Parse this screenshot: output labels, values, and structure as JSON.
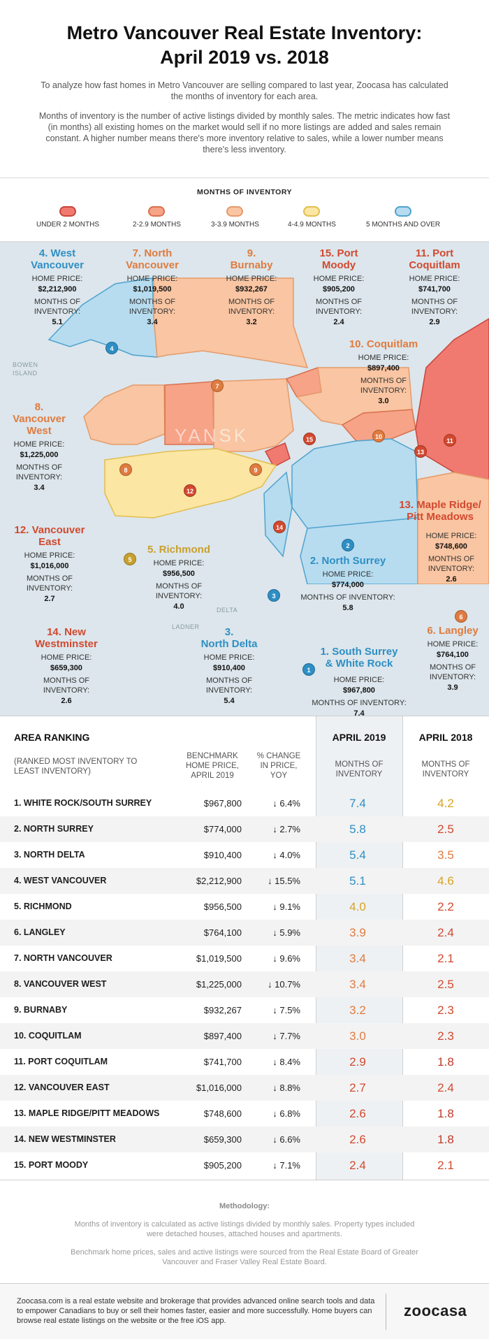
{
  "header": {
    "title_line1": "Metro Vancouver Real Estate Inventory:",
    "title_line2": "April 2019 vs. 2018",
    "intro": "To analyze how fast homes in Metro Vancouver are selling compared to last year, Zoocasa has calculated the months of inventory for each area.",
    "intro2": "Months of inventory is the number of active listings divided by monthly sales. The metric indicates how fast (in months) all existing homes on the market would sell if no more listings are added and sales remain constant. A higher number means there's more inventory relative to sales, while a lower number means there's less inventory."
  },
  "legend": {
    "title": "MONTHS OF INVENTORY",
    "items": [
      {
        "label": "UNDER 2 MONTHS",
        "fill": "#f07a70",
        "stroke": "#c9453b"
      },
      {
        "label": "2-2.9 MONTHS",
        "fill": "#f6a387",
        "stroke": "#d9704e"
      },
      {
        "label": "3-3.9 MONTHS",
        "fill": "#f9c5a2",
        "stroke": "#e59b6b"
      },
      {
        "label": "4-4.9 MONTHS",
        "fill": "#fbe6a3",
        "stroke": "#e2be4f"
      },
      {
        "label": "5 MONTHS AND OVER",
        "fill": "#b7dcef",
        "stroke": "#4fa3cf"
      }
    ]
  },
  "map": {
    "home_price_label": "HOME PRICE:",
    "months_label": "MONTHS OF INVENTORY:",
    "places": {
      "bowen": "BOWEN ISLAND",
      "delta": "DELTA",
      "ladner": "LADNER"
    },
    "watermark": "YANSK",
    "areas": [
      {
        "num": "4",
        "name1": "4. West",
        "name2": "Vancouver",
        "price": "$2,212,900",
        "months": "5.1",
        "color": "#2e8fc4"
      },
      {
        "num": "7",
        "name1": "7. North",
        "name2": "Vancouver",
        "price": "$1,019,500",
        "months": "3.4",
        "color": "#e07b3f"
      },
      {
        "num": "9",
        "name1": "9.",
        "name2": "Burnaby",
        "price": "$932,267",
        "months": "3.2",
        "color": "#e07b3f"
      },
      {
        "num": "15",
        "name1": "15. Port",
        "name2": "Moody",
        "price": "$905,200",
        "months": "2.4",
        "color": "#d2492f"
      },
      {
        "num": "11",
        "name1": "11. Port",
        "name2": "Coquitlam",
        "price": "$741,700",
        "months": "2.9",
        "color": "#d2492f"
      },
      {
        "num": "10",
        "name1": "10. Coquitlam",
        "name2": "",
        "price": "$897,400",
        "months": "3.0",
        "color": "#e07b3f"
      },
      {
        "num": "8",
        "name1": "8.",
        "name2": "Vancouver",
        "name3": "West",
        "price": "$1,225,000",
        "months": "3.4",
        "color": "#e07b3f"
      },
      {
        "num": "13",
        "name1": "13. Maple Ridge/",
        "name2": "Pitt Meadows",
        "price": "$748,600",
        "months": "2.6",
        "color": "#d2492f"
      },
      {
        "num": "12",
        "name1": "12. Vancouver",
        "name2": "East",
        "price": "$1,016,000",
        "months": "2.7",
        "color": "#d2492f"
      },
      {
        "num": "5",
        "name1": "5. Richmond",
        "name2": "",
        "price": "$956,500",
        "months": "4.0",
        "color": "#c9a02e"
      },
      {
        "num": "2",
        "name1": "2. North Surrey",
        "name2": "",
        "price": "$774,000",
        "months": "5.8",
        "color": "#2e8fc4"
      },
      {
        "num": "14",
        "name1": "14. New",
        "name2": "Westminster",
        "price": "$659,300",
        "months": "2.6",
        "color": "#d2492f"
      },
      {
        "num": "3",
        "name1": "3.",
        "name2": "North Delta",
        "price": "$910,400",
        "months": "5.4",
        "color": "#2e8fc4"
      },
      {
        "num": "1",
        "name1": "1. South Surrey",
        "name2": "& White Rock",
        "price": "$967,800",
        "months": "7.4",
        "color": "#2e8fc4"
      },
      {
        "num": "6",
        "name1": "6. Langley",
        "name2": "",
        "price": "$764,100",
        "months": "3.9",
        "color": "#e07b3f"
      }
    ]
  },
  "table": {
    "header_area": "AREA RANKING",
    "header_area_sub": "(RANKED MOST INVENTORY TO LEAST INVENTORY)",
    "header_price": "BENCHMARK HOME PRICE, APRIL 2019",
    "header_change": "% CHANGE IN PRICE, YOY",
    "header_2019": "APRIL 2019",
    "header_2018": "APRIL 2018",
    "header_months": "MONTHS OF INVENTORY",
    "arrow": "↓"
  },
  "chart_data": {
    "type": "table",
    "title": "Metro Vancouver Real Estate Inventory: April 2019 vs. 2018",
    "columns": [
      "AREA RANKING",
      "BENCHMARK HOME PRICE, APRIL 2019",
      "% CHANGE IN PRICE, YOY",
      "APRIL 2019 MONTHS OF INVENTORY",
      "APRIL 2018 MONTHS OF INVENTORY"
    ],
    "rows": [
      {
        "area": "1. WHITE ROCK/SOUTH SURREY",
        "price": "$967,800",
        "change": "6.4%",
        "m2019": "7.4",
        "m2018": "4.2"
      },
      {
        "area": "2. NORTH SURREY",
        "price": "$774,000",
        "change": "2.7%",
        "m2019": "5.8",
        "m2018": "2.5"
      },
      {
        "area": "3. NORTH DELTA",
        "price": "$910,400",
        "change": "4.0%",
        "m2019": "5.4",
        "m2018": "3.5"
      },
      {
        "area": "4. WEST VANCOUVER",
        "price": "$2,212,900",
        "change": "15.5%",
        "m2019": "5.1",
        "m2018": "4.6"
      },
      {
        "area": "5. RICHMOND",
        "price": "$956,500",
        "change": "9.1%",
        "m2019": "4.0",
        "m2018": "2.2"
      },
      {
        "area": "6. LANGLEY",
        "price": "$764,100",
        "change": "5.9%",
        "m2019": "3.9",
        "m2018": "2.4"
      },
      {
        "area": "7. NORTH VANCOUVER",
        "price": "$1,019,500",
        "change": "9.6%",
        "m2019": "3.4",
        "m2018": "2.1"
      },
      {
        "area": "8. VANCOUVER WEST",
        "price": "$1,225,000",
        "change": "10.7%",
        "m2019": "3.4",
        "m2018": "2.5"
      },
      {
        "area": "9. BURNABY",
        "price": "$932,267",
        "change": "7.5%",
        "m2019": "3.2",
        "m2018": "2.3"
      },
      {
        "area": "10. COQUITLAM",
        "price": "$897,400",
        "change": "7.7%",
        "m2019": "3.0",
        "m2018": "2.3"
      },
      {
        "area": "11. PORT COQUITLAM",
        "price": "$741,700",
        "change": "8.4%",
        "m2019": "2.9",
        "m2018": "1.8"
      },
      {
        "area": "12. VANCOUVER EAST",
        "price": "$1,016,000",
        "change": "8.8%",
        "m2019": "2.7",
        "m2018": "2.4"
      },
      {
        "area": "13. MAPLE RIDGE/PITT MEADOWS",
        "price": "$748,600",
        "change": "6.8%",
        "m2019": "2.6",
        "m2018": "1.8"
      },
      {
        "area": "14. NEW WESTMINSTER",
        "price": "$659,300",
        "change": "6.6%",
        "m2019": "2.6",
        "m2018": "1.8"
      },
      {
        "area": "15. PORT MOODY",
        "price": "$905,200",
        "change": "7.1%",
        "m2019": "2.4",
        "m2018": "2.1"
      }
    ]
  },
  "methodology": {
    "title": "Methodology:",
    "p1": "Months of inventory is calculated as active listings divided by monthly sales. Property types included were detached houses, attached houses and apartments.",
    "p2": "Benchmark home prices, sales and active listings were sourced from the Real Estate Board of Greater Vancouver and Fraser Valley Real Estate Board."
  },
  "footer": {
    "text": "Zoocasa.com is a real estate website and brokerage that provides advanced online search tools and data to empower Canadians to buy or sell their homes faster, easier and more successfully. Home buyers can browse real estate listings on the website or the free iOS app.",
    "logo": "zoocasa"
  }
}
